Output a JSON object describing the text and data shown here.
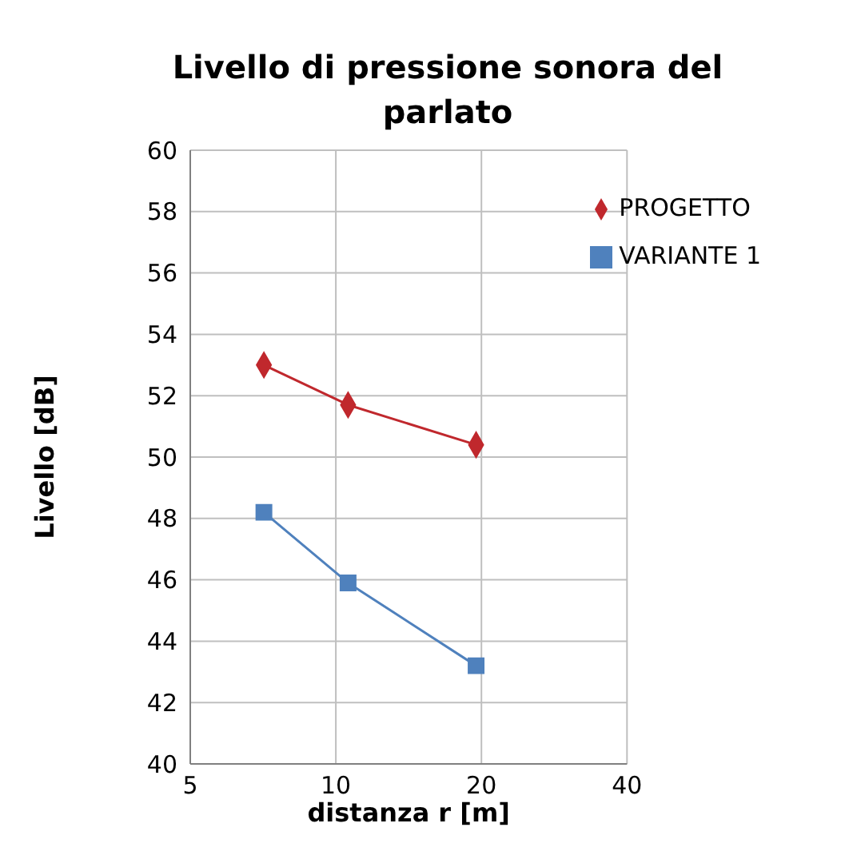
{
  "chart_data": {
    "type": "line",
    "title": "Livello di pressione sonora del parlato",
    "xlabel": "distanza r    [m]",
    "ylabel": "Livello    [dB]",
    "log": "x",
    "xlim": [
      5,
      40
    ],
    "xticks": [
      5,
      10,
      20,
      40
    ],
    "ylim": [
      40,
      60
    ],
    "yticks": [
      40,
      42,
      44,
      46,
      48,
      50,
      52,
      54,
      56,
      58,
      60
    ],
    "grid": true,
    "legend": "top right",
    "series": [
      {
        "name": "PROGETTO",
        "color": "#c0282d",
        "marker": "diamond",
        "x": [
          7.1,
          10.6,
          19.5
        ],
        "values": [
          53.0,
          51.7,
          50.4
        ]
      },
      {
        "name": "VARIANTE 1",
        "color": "#4f81bd",
        "marker": "square",
        "x": [
          7.1,
          10.6,
          19.5
        ],
        "values": [
          48.2,
          45.9,
          43.2
        ]
      }
    ]
  }
}
